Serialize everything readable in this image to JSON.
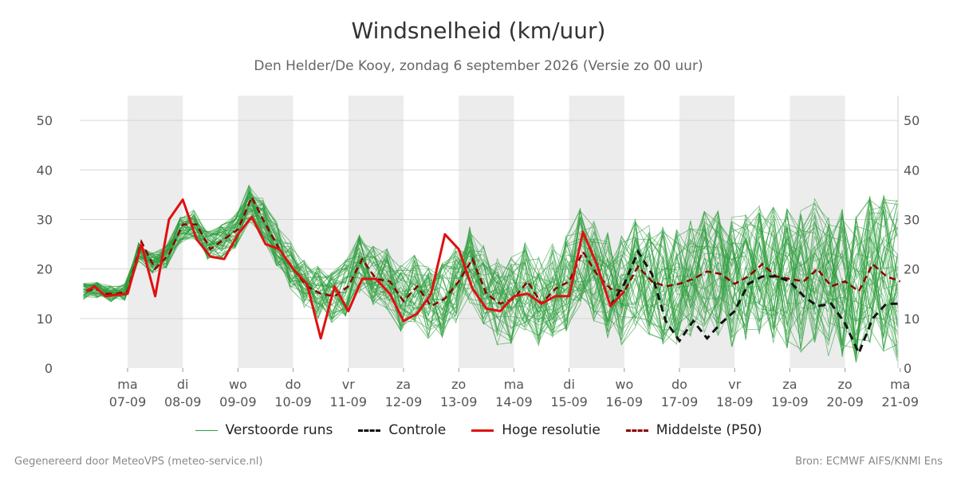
{
  "header": {
    "title": "Windsnelheid (km/uur)",
    "subtitle": "Den Helder/De Kooy, zondag  6 september 2026 (Versie zo 00 uur)"
  },
  "footer": {
    "left": "Gegenereerd door MeteoVPS (meteo-service.nl)",
    "right": "Bron: ECMWF AIFS/KNMI Ens"
  },
  "legend": {
    "items": [
      {
        "label": "Verstoorde runs",
        "color": "#2e9e3e",
        "style": "solid-thin"
      },
      {
        "label": "Controle",
        "color": "#111111",
        "style": "dashed"
      },
      {
        "label": "Hoge resolutie",
        "color": "#e01010",
        "style": "solid-thick"
      },
      {
        "label": "Middelste (P50)",
        "color": "#8b0000",
        "style": "dashed"
      }
    ]
  },
  "chart_data": {
    "type": "line",
    "ylim": [
      0,
      55
    ],
    "yticks": [
      0,
      10,
      20,
      30,
      40,
      50
    ],
    "grid": true,
    "x_unit": "day index (0 = 07-09 00:00)",
    "xlim": [
      -0.8,
      14
    ],
    "weekend_like_shaded_days": [
      0,
      2,
      4,
      6,
      8,
      10,
      12
    ],
    "xtick_labels": [
      {
        "day": "ma",
        "date": "07-09"
      },
      {
        "day": "di",
        "date": "08-09"
      },
      {
        "day": "wo",
        "date": "09-09"
      },
      {
        "day": "do",
        "date": "10-09"
      },
      {
        "day": "vr",
        "date": "11-09"
      },
      {
        "day": "za",
        "date": "12-09"
      },
      {
        "day": "zo",
        "date": "13-09"
      },
      {
        "day": "ma",
        "date": "14-09"
      },
      {
        "day": "di",
        "date": "15-09"
      },
      {
        "day": "wo",
        "date": "16-09"
      },
      {
        "day": "do",
        "date": "17-09"
      },
      {
        "day": "vr",
        "date": "18-09"
      },
      {
        "day": "za",
        "date": "19-09"
      },
      {
        "day": "zo",
        "date": "20-09"
      },
      {
        "day": "ma",
        "date": "21-09"
      }
    ],
    "series": [
      {
        "name": "Hoge resolutie",
        "x": [
          -0.75,
          -0.6,
          -0.4,
          -0.2,
          0,
          0.25,
          0.5,
          0.75,
          1.0,
          1.25,
          1.5,
          1.75,
          2.0,
          2.25,
          2.5,
          2.75,
          3.0,
          3.25,
          3.5,
          3.75,
          4.0,
          4.25,
          4.5,
          4.75,
          5.0,
          5.25,
          5.5,
          5.75,
          6.0,
          6.25,
          6.5,
          6.75,
          7.0,
          7.25,
          7.5,
          7.75,
          8.0,
          8.25,
          8.5,
          8.75,
          9.0
        ],
        "values": [
          15.5,
          16.5,
          14.5,
          14.8,
          15,
          25,
          14.5,
          30,
          34,
          26,
          22.5,
          22,
          27,
          30.5,
          25,
          24,
          20,
          17,
          6,
          16.5,
          11.5,
          18,
          18,
          15,
          9.5,
          11,
          15,
          27,
          24,
          16,
          12,
          11.5,
          14.5,
          15,
          13,
          14.5,
          14.5,
          27.5,
          21,
          12.5,
          15.5
        ]
      },
      {
        "name": "Controle",
        "x": [
          8.75,
          9.0,
          9.25,
          9.5,
          9.75,
          10.0,
          10.25,
          10.5,
          10.75,
          11.0,
          11.25,
          11.5,
          11.75,
          12.0,
          12.25,
          12.5,
          12.75,
          13.0,
          13.25,
          13.5,
          13.75,
          14.0
        ],
        "values": [
          12.5,
          17,
          23.5,
          19,
          9.5,
          5.5,
          9.5,
          6,
          9,
          11.5,
          17,
          18.5,
          18.5,
          17.5,
          14.5,
          12.5,
          13,
          9,
          3,
          10,
          13,
          13
        ]
      },
      {
        "name": "Middelste (P50)",
        "x": [
          -0.75,
          -0.6,
          -0.4,
          -0.2,
          0,
          0.25,
          0.5,
          0.75,
          1.0,
          1.25,
          1.5,
          1.75,
          2.0,
          2.25,
          2.5,
          2.75,
          3.0,
          3.25,
          3.5,
          3.75,
          4.0,
          4.25,
          4.5,
          4.75,
          5.0,
          5.25,
          5.5,
          5.75,
          6.0,
          6.25,
          6.5,
          6.75,
          7.0,
          7.25,
          7.5,
          7.75,
          8.0,
          8.25,
          8.5,
          8.75,
          9.0,
          9.25,
          9.5,
          9.75,
          10.0,
          10.25,
          10.5,
          10.75,
          11.0,
          11.25,
          11.5,
          11.75,
          12.0,
          12.25,
          12.5,
          12.75,
          13.0,
          13.25,
          13.5,
          13.75,
          14.0
        ],
        "values": [
          15.5,
          16,
          15,
          15,
          15.5,
          25.5,
          20,
          23,
          29,
          29,
          24,
          26,
          28,
          34.5,
          29,
          24,
          20,
          16.5,
          15,
          14.5,
          16.5,
          22,
          18,
          17.5,
          13.5,
          16.5,
          12.5,
          14,
          17.5,
          22,
          15,
          13,
          14,
          17.5,
          13,
          16,
          17.5,
          23.5,
          19,
          16,
          15.5,
          20.5,
          17.5,
          16.5,
          17,
          18,
          19.5,
          19,
          17,
          18.5,
          21,
          18.5,
          18,
          17.5,
          20,
          16.5,
          17.5,
          15.5,
          21,
          18.5,
          17.5
        ]
      }
    ],
    "ensemble_members": 50,
    "ensemble_note": "Verstoorde runs"
  }
}
